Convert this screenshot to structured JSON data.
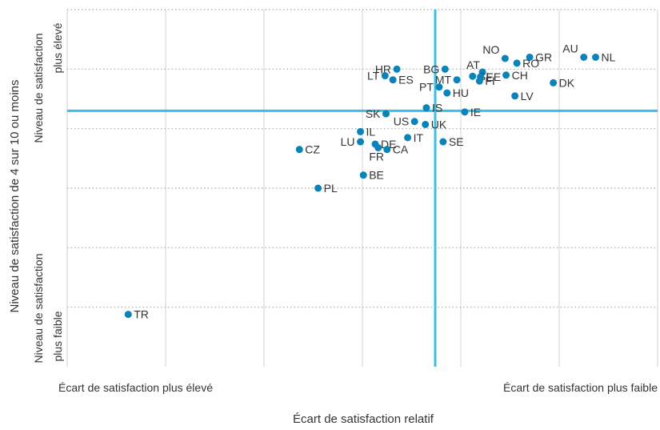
{
  "chart_data": {
    "type": "scatter",
    "title": "",
    "xlabel": "Écart de satisfaction relatif",
    "ylabel": "Niveau de satisfaction de 4 sur 10 ou moins",
    "x_end_labels": {
      "low": "Écart de satisfaction plus élevé",
      "high": "Écart de satisfaction plus faible"
    },
    "y_end_labels": {
      "high": [
        "Niveau de satisfaction",
        "plus élevé"
      ],
      "low": [
        "Niveau de satisfaction",
        "plus faible"
      ]
    },
    "xlim": [
      0,
      6
    ],
    "ylim": [
      0,
      6
    ],
    "grid": true,
    "reference_lines": {
      "x": 3.74,
      "y": 4.3,
      "color": "#3bbfe6"
    },
    "marker_color": "#0a84b8",
    "points": [
      {
        "label": "AU",
        "x": 5.25,
        "y": 5.2
      },
      {
        "label": "NL",
        "x": 5.37,
        "y": 5.2
      },
      {
        "label": "NO",
        "x": 4.45,
        "y": 5.18
      },
      {
        "label": "GR",
        "x": 4.7,
        "y": 5.2
      },
      {
        "label": "RO",
        "x": 4.57,
        "y": 5.1
      },
      {
        "label": "HR",
        "x": 3.35,
        "y": 5.0
      },
      {
        "label": "BG",
        "x": 3.84,
        "y": 5.0
      },
      {
        "label": "AT",
        "x": 4.22,
        "y": 4.95
      },
      {
        "label": "SI",
        "x": 4.12,
        "y": 4.88
      },
      {
        "label": "MT",
        "x": 3.96,
        "y": 4.82
      },
      {
        "label": "EE",
        "x": 4.2,
        "y": 4.87
      },
      {
        "label": "CH",
        "x": 4.46,
        "y": 4.9
      },
      {
        "label": "FI",
        "x": 4.19,
        "y": 4.8
      },
      {
        "label": "DK",
        "x": 4.94,
        "y": 4.77
      },
      {
        "label": "LT",
        "x": 3.23,
        "y": 4.89
      },
      {
        "label": "ES",
        "x": 3.31,
        "y": 4.82
      },
      {
        "label": "PT",
        "x": 3.78,
        "y": 4.7
      },
      {
        "label": "HU",
        "x": 3.86,
        "y": 4.6
      },
      {
        "label": "LV",
        "x": 4.55,
        "y": 4.55
      },
      {
        "label": "IS",
        "x": 3.65,
        "y": 4.35
      },
      {
        "label": "IE",
        "x": 4.04,
        "y": 4.28
      },
      {
        "label": "SK",
        "x": 3.24,
        "y": 4.25
      },
      {
        "label": "US",
        "x": 3.53,
        "y": 4.12
      },
      {
        "label": "UK",
        "x": 3.64,
        "y": 4.07
      },
      {
        "label": "IL",
        "x": 2.98,
        "y": 3.95
      },
      {
        "label": "IT",
        "x": 3.46,
        "y": 3.85
      },
      {
        "label": "SE",
        "x": 3.82,
        "y": 3.78
      },
      {
        "label": "LU",
        "x": 2.98,
        "y": 3.78
      },
      {
        "label": "DE",
        "x": 3.13,
        "y": 3.74
      },
      {
        "label": "FR",
        "x": 3.16,
        "y": 3.68
      },
      {
        "label": "CA",
        "x": 3.25,
        "y": 3.65
      },
      {
        "label": "CZ",
        "x": 2.36,
        "y": 3.65
      },
      {
        "label": "BE",
        "x": 3.01,
        "y": 3.22
      },
      {
        "label": "PL",
        "x": 2.55,
        "y": 3.0
      },
      {
        "label": "TR",
        "x": 0.62,
        "y": 0.88
      }
    ]
  }
}
